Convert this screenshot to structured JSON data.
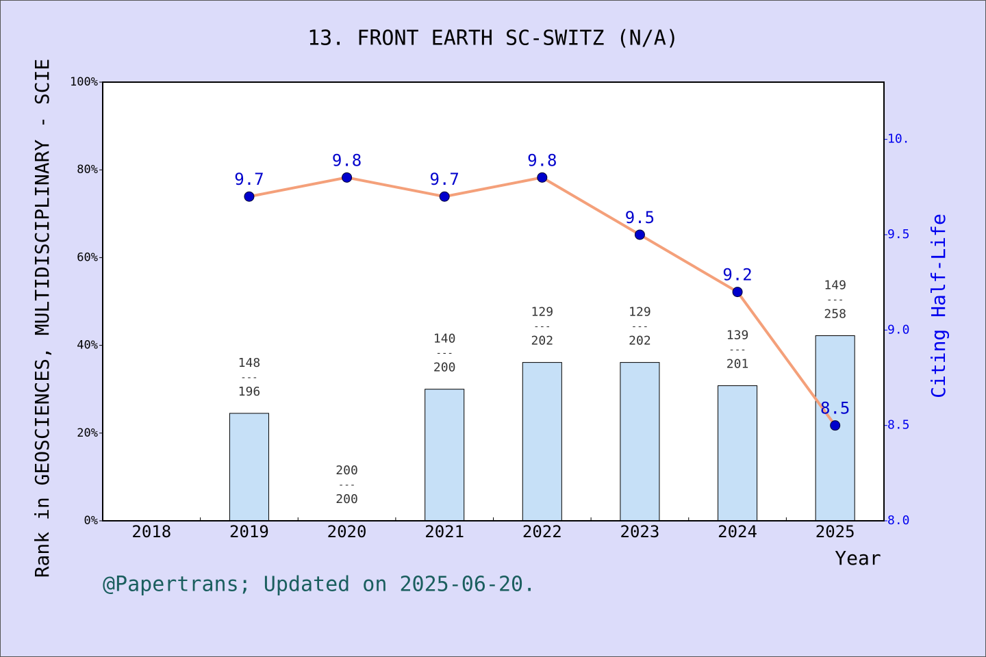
{
  "chart_data": {
    "type": "bar",
    "title": "13. FRONT EARTH SC-SWITZ (N/A)",
    "categories": [
      "2018",
      "2019",
      "2020",
      "2021",
      "2022",
      "2023",
      "2024",
      "2025"
    ],
    "x_label": "Year",
    "y_label": "Rank in GEOSCIENCES, MULTIDISCIPLINARY - SCIE",
    "y2_label": "Citing Half-Life",
    "footer": "@Papertrans; Updated on 2025-06-20.",
    "rank_separator": "---",
    "ylim": [
      0,
      100
    ],
    "yticks": [
      {
        "value": 0,
        "label": "0%"
      },
      {
        "value": 20,
        "label": "20%"
      },
      {
        "value": 40,
        "label": "40%"
      },
      {
        "value": 60,
        "label": "60%"
      },
      {
        "value": 80,
        "label": "80%"
      },
      {
        "value": 100,
        "label": "100%"
      }
    ],
    "y2lim": [
      8,
      10.3
    ],
    "y2ticks": [
      {
        "value": 8,
        "label": "8.0"
      },
      8.5,
      {
        "value": 9,
        "label": "9.0"
      },
      9.5,
      {
        "value": 10,
        "label": "10."
      }
    ],
    "series": [
      {
        "type": "bar",
        "color": "#c6e0f7",
        "values": [
          null,
          24.5,
          0,
          30,
          36.1,
          36.1,
          30.8,
          42.2
        ],
        "ranks": [
          null,
          148,
          200,
          140,
          129,
          129,
          139,
          149
        ],
        "totals": [
          null,
          196,
          200,
          200,
          202,
          202,
          201,
          258
        ]
      },
      {
        "type": "line",
        "axis": "y2",
        "color": "#f4a07a",
        "marker_color": "#0000cc",
        "values": [
          null,
          9.7,
          9.8,
          9.7,
          9.8,
          9.5,
          9.2,
          8.5
        ]
      }
    ]
  }
}
